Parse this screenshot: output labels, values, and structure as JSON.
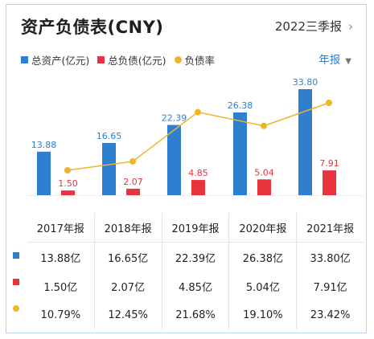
{
  "header": {
    "title": "资产负债表(CNY)",
    "period_label": "2022三季报",
    "period_chevron": "›"
  },
  "legend": {
    "items": [
      {
        "label": "总资产(亿元)",
        "color": "#2f7fd1",
        "shape": "square"
      },
      {
        "label": "总负债(亿元)",
        "color": "#e8323c",
        "shape": "square"
      },
      {
        "label": "负债率",
        "color": "#f0b429",
        "shape": "circle"
      }
    ]
  },
  "report_type": {
    "label": "年报",
    "icon": "triangle-down-icon"
  },
  "chart_data": {
    "type": "bar",
    "categories": [
      "2017年报",
      "2018年报",
      "2019年报",
      "2020年报",
      "2021年报"
    ],
    "series": [
      {
        "name": "总资产(亿元)",
        "type": "bar",
        "color": "#2f7fd1",
        "values": [
          13.88,
          16.65,
          22.39,
          26.38,
          33.8
        ],
        "labels": [
          "13.88",
          "16.65",
          "22.39",
          "26.38",
          "33.80"
        ]
      },
      {
        "name": "总负债(亿元)",
        "type": "bar",
        "color": "#e8323c",
        "values": [
          1.5,
          2.07,
          4.85,
          5.04,
          7.91
        ],
        "labels": [
          "1.50",
          "2.07",
          "4.85",
          "5.04",
          "7.91"
        ]
      },
      {
        "name": "负债率",
        "type": "line",
        "color": "#f0b429",
        "values": [
          10.79,
          12.45,
          21.68,
          19.1,
          23.42
        ]
      }
    ]
  },
  "table": {
    "headers": [
      "2017年报",
      "2018年报",
      "2019年报",
      "2020年报",
      "2021年报"
    ],
    "rows": [
      {
        "color": "#2f7fd1",
        "shape": "square",
        "cells": [
          "13.88亿",
          "16.65亿",
          "22.39亿",
          "26.38亿",
          "33.80亿"
        ]
      },
      {
        "color": "#e8323c",
        "shape": "square",
        "cells": [
          "1.50亿",
          "2.07亿",
          "4.85亿",
          "5.04亿",
          "7.91亿"
        ]
      },
      {
        "color": "#f0b429",
        "shape": "circle",
        "cells": [
          "10.79%",
          "12.45%",
          "21.68%",
          "19.10%",
          "23.42%"
        ]
      }
    ]
  }
}
